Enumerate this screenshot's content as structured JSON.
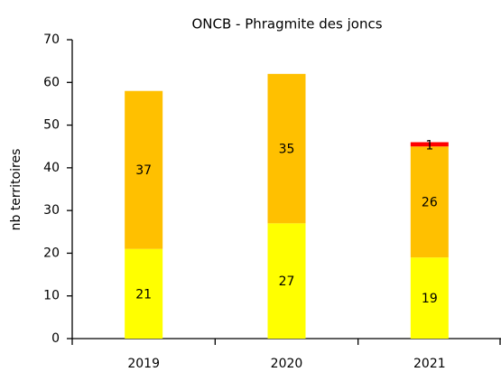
{
  "chart_data": {
    "type": "stacked_bar",
    "title": "ONCB - Phragmite des joncs",
    "y_label": "nb territoires",
    "categories": [
      "2019",
      "2020",
      "2021"
    ],
    "series": [
      {
        "color": "#ffff00",
        "values": [
          21,
          27,
          19
        ]
      },
      {
        "color": "#ffc000",
        "values": [
          37,
          35,
          26
        ]
      },
      {
        "color": "#ff0000",
        "values": [
          null,
          null,
          1
        ]
      }
    ],
    "ylim": [
      0,
      70
    ],
    "yticks": [
      0,
      10,
      20,
      30,
      40,
      50,
      60,
      70
    ],
    "grid": false
  }
}
